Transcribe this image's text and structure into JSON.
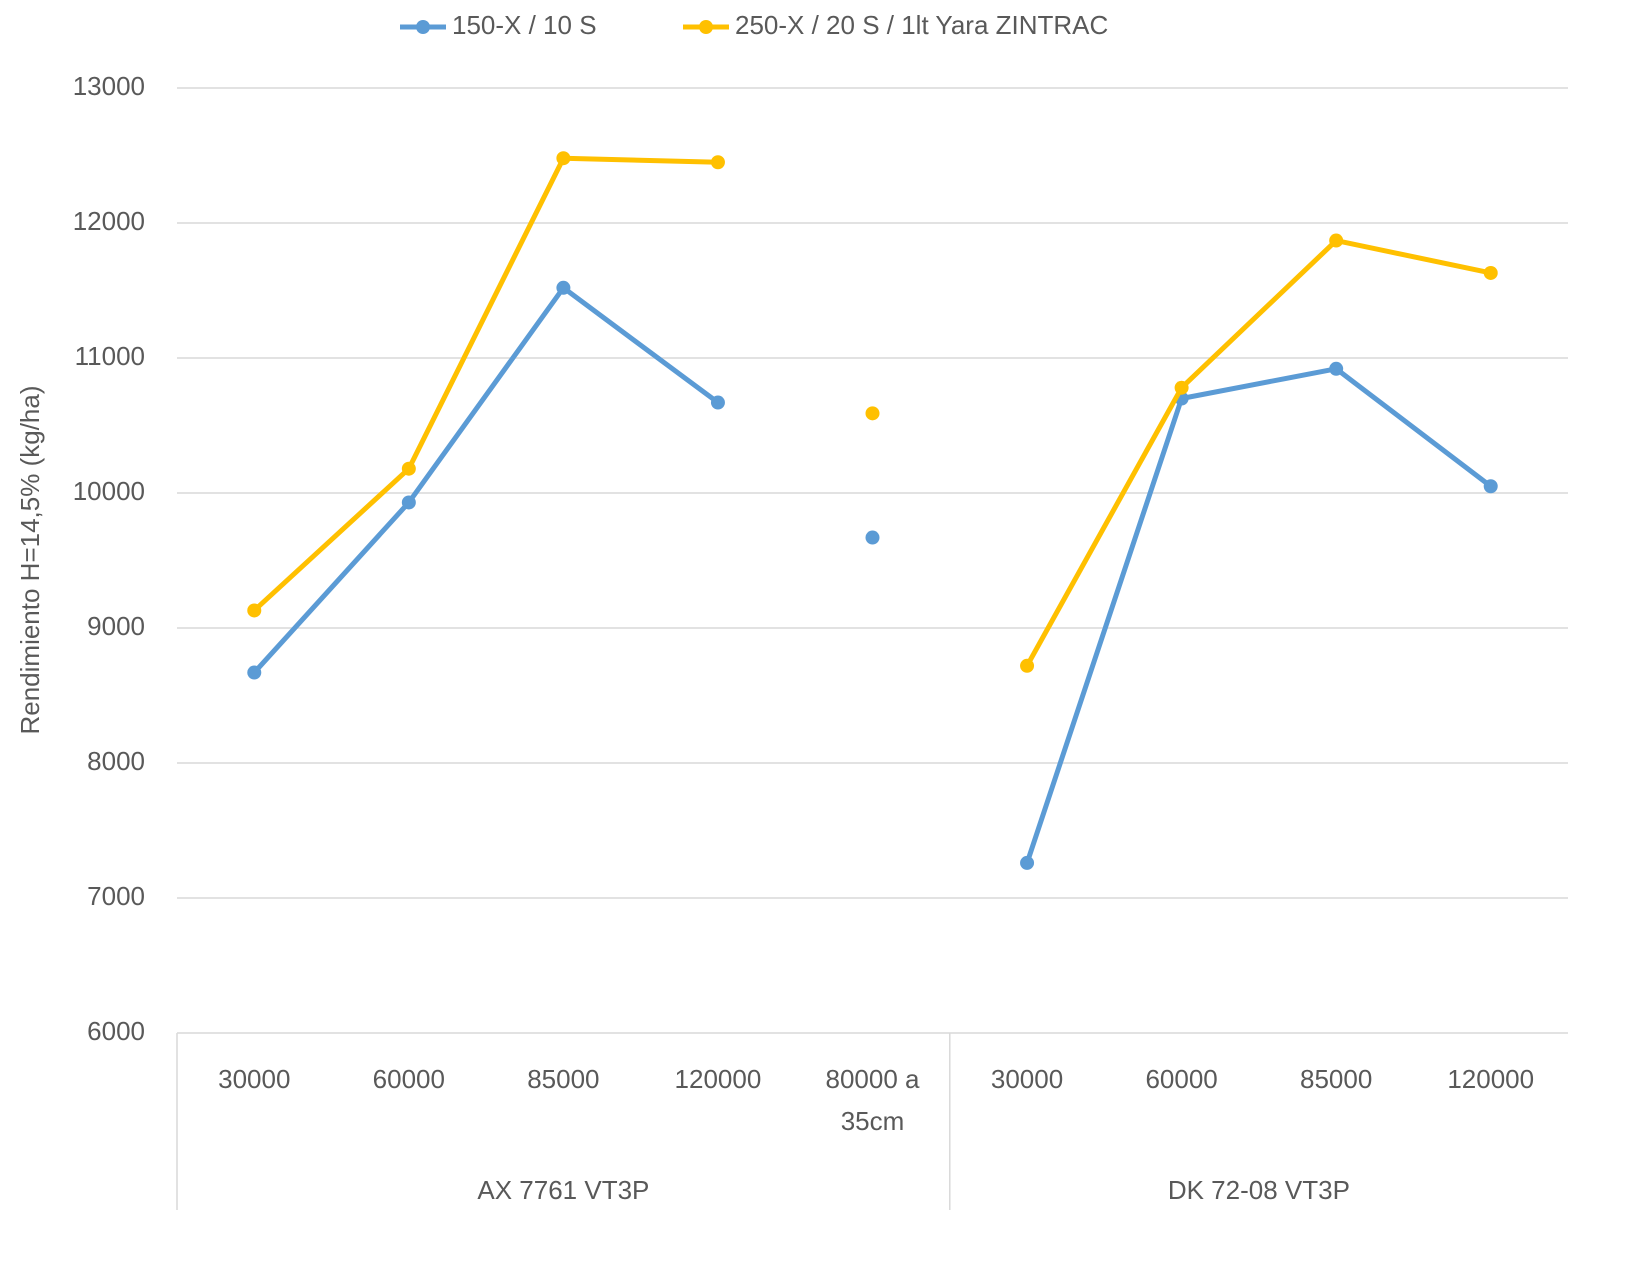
{
  "chart_data": {
    "type": "line",
    "y_label": "Rendimiento H=14,5% (kg/ha)",
    "categories": [
      "30000",
      "60000",
      "85000",
      "120000",
      "80000 a 35cm",
      "30000",
      "60000",
      "85000",
      "120000"
    ],
    "groups": [
      {
        "name": "AX 7761 VT3P",
        "span": 5
      },
      {
        "name": "DK 72-08 VT3P",
        "span": 4
      }
    ],
    "lines": [
      [
        0,
        1,
        2,
        3
      ],
      [
        5,
        6,
        7,
        8
      ]
    ],
    "series": [
      {
        "name": "150-X / 10 S",
        "color": "#5b9bd5",
        "values": [
          8670,
          9930,
          11520,
          10670,
          9670,
          7260,
          10700,
          10920,
          10050
        ]
      },
      {
        "name": "250-X / 20 S / 1lt Yara ZINTRAC",
        "color": "#ffc000",
        "values": [
          9130,
          10180,
          12480,
          12450,
          10590,
          8720,
          10780,
          11870,
          11630
        ]
      }
    ],
    "ylim": [
      6000,
      13000
    ],
    "yticks": [
      6000,
      7000,
      8000,
      9000,
      10000,
      11000,
      12000,
      13000
    ],
    "grid": true,
    "legend": "top"
  }
}
